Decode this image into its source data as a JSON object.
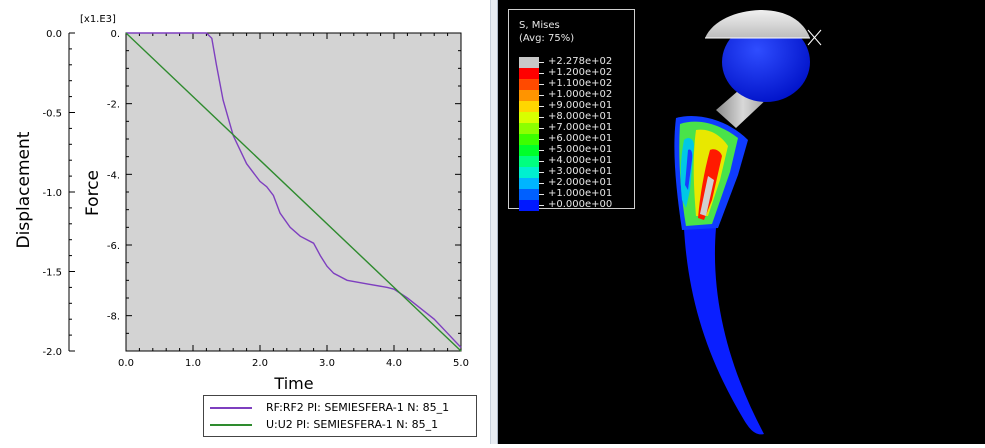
{
  "chart_data": {
    "type": "line",
    "xlabel": "Time",
    "ylabel_left": "Displacement",
    "ylabel_right": "Force",
    "multiplier": "[x1.E3]",
    "xlim": [
      0.0,
      5.0
    ],
    "ylim_left": [
      -2.0,
      0.0
    ],
    "ylim_right": [
      -9.0,
      0.0
    ],
    "x_ticks": [
      "0.0",
      "1.0",
      "2.0",
      "3.0",
      "4.0",
      "5.0"
    ],
    "y_left_ticks": [
      "0.0",
      "-0.5",
      "-1.0",
      "-1.5",
      "-2.0"
    ],
    "y_right_ticks": [
      "0.",
      "-2.",
      "-4.",
      "-6.",
      "-8."
    ],
    "grid": false,
    "series": [
      {
        "name": "RF:RF2 PI: SEMIESFERA-1 N: 85_1",
        "color": "#7e3fbf",
        "axis": "right",
        "x": [
          0.0,
          1.2,
          1.28,
          1.35,
          1.45,
          1.6,
          1.8,
          2.0,
          2.1,
          2.2,
          2.3,
          2.45,
          2.6,
          2.8,
          2.9,
          3.0,
          3.1,
          3.3,
          3.6,
          3.9,
          4.0,
          4.2,
          4.4,
          4.6,
          4.8,
          5.0
        ],
        "y": [
          0.0,
          0.0,
          -0.15,
          -0.9,
          -1.9,
          -2.9,
          -3.7,
          -4.2,
          -4.35,
          -4.6,
          -5.1,
          -5.5,
          -5.75,
          -5.95,
          -6.3,
          -6.6,
          -6.8,
          -7.0,
          -7.1,
          -7.2,
          -7.25,
          -7.5,
          -7.8,
          -8.1,
          -8.5,
          -8.9
        ]
      },
      {
        "name": "U:U2 PI: SEMIESFERA-1 N: 85_1",
        "color": "#2e8b2e",
        "axis": "left",
        "x": [
          0.0,
          5.0
        ],
        "y": [
          0.0,
          -2.0
        ]
      }
    ]
  },
  "contour_legend": {
    "title": "S, Mises",
    "subtitle": "(Avg: 75%)",
    "entries": [
      {
        "label": "+2.278e+02",
        "color": "#c8c8c8"
      },
      {
        "label": "+1.200e+02",
        "color": "#ff0000"
      },
      {
        "label": "+1.100e+02",
        "color": "#ff4a00"
      },
      {
        "label": "+1.000e+02",
        "color": "#ff9400"
      },
      {
        "label": "+9.000e+01",
        "color": "#ffd600"
      },
      {
        "label": "+8.000e+01",
        "color": "#d8ff00"
      },
      {
        "label": "+7.000e+01",
        "color": "#8cff00"
      },
      {
        "label": "+6.000e+01",
        "color": "#3cff00"
      },
      {
        "label": "+5.000e+01",
        "color": "#00ff2a"
      },
      {
        "label": "+4.000e+01",
        "color": "#00ff80"
      },
      {
        "label": "+3.000e+01",
        "color": "#00f0d0"
      },
      {
        "label": "+2.000e+01",
        "color": "#00b4ff"
      },
      {
        "label": "+1.000e+01",
        "color": "#0060ff"
      },
      {
        "label": "+0.000e+00",
        "color": "#0018ff"
      }
    ]
  }
}
